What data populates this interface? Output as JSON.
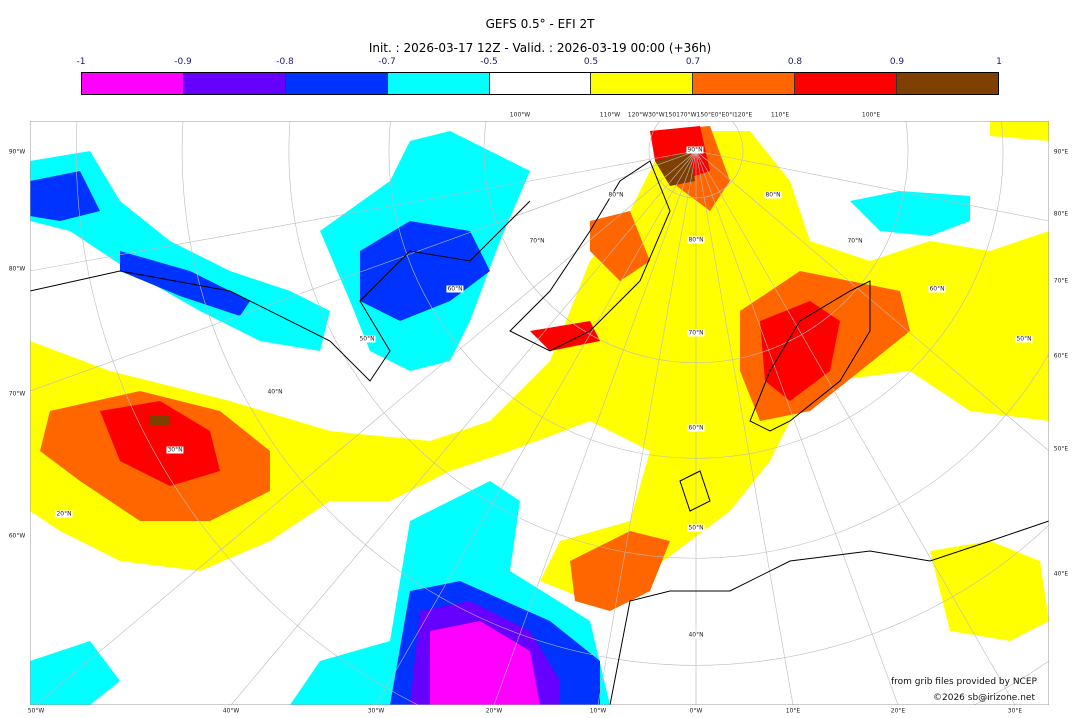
{
  "title": "GEFS 0.5° - EFI 2T",
  "subtitle": "Init. : 2026-03-17 12Z - Valid. : 2026-03-19 00:00 (+36h)",
  "colorbar": {
    "ticks": [
      "-1",
      "-0.9",
      "-0.8",
      "-0.7",
      "-0.5",
      "0.5",
      "0.7",
      "0.8",
      "0.9",
      "1"
    ],
    "colors": [
      "#ff00ff",
      "#6600ff",
      "#0033ff",
      "#00ffff",
      "#ffffff",
      "#ffff00",
      "#ff6600",
      "#ff0000",
      "#7f3f00"
    ]
  },
  "axes": {
    "left": [
      "90°W",
      "80°W",
      "70°W",
      "60°W"
    ],
    "right": [
      "90°E",
      "80°E",
      "70°E",
      "60°E",
      "50°E",
      "40°E"
    ],
    "bottom": [
      "50°W",
      "40°W",
      "30°W",
      "20°W",
      "10°W",
      "0°W",
      "10°E",
      "20°E",
      "30°E"
    ],
    "top": [
      "100°W",
      "110°W",
      "120°W30°W150170°W150°E0°E0°I120°E",
      "110°E",
      "100°E"
    ]
  },
  "lat_labels": [
    "90°N",
    "80°N",
    "80°N",
    "80°N",
    "70°N",
    "70°N",
    "70°N",
    "60°N",
    "60°N",
    "60°N",
    "50°N",
    "50°N",
    "50°N",
    "40°N",
    "40°N",
    "30°N",
    "20°N"
  ],
  "credits": {
    "source": "from grib files provided by NCEP",
    "copyright": "©2026 sb@irizone.net"
  }
}
